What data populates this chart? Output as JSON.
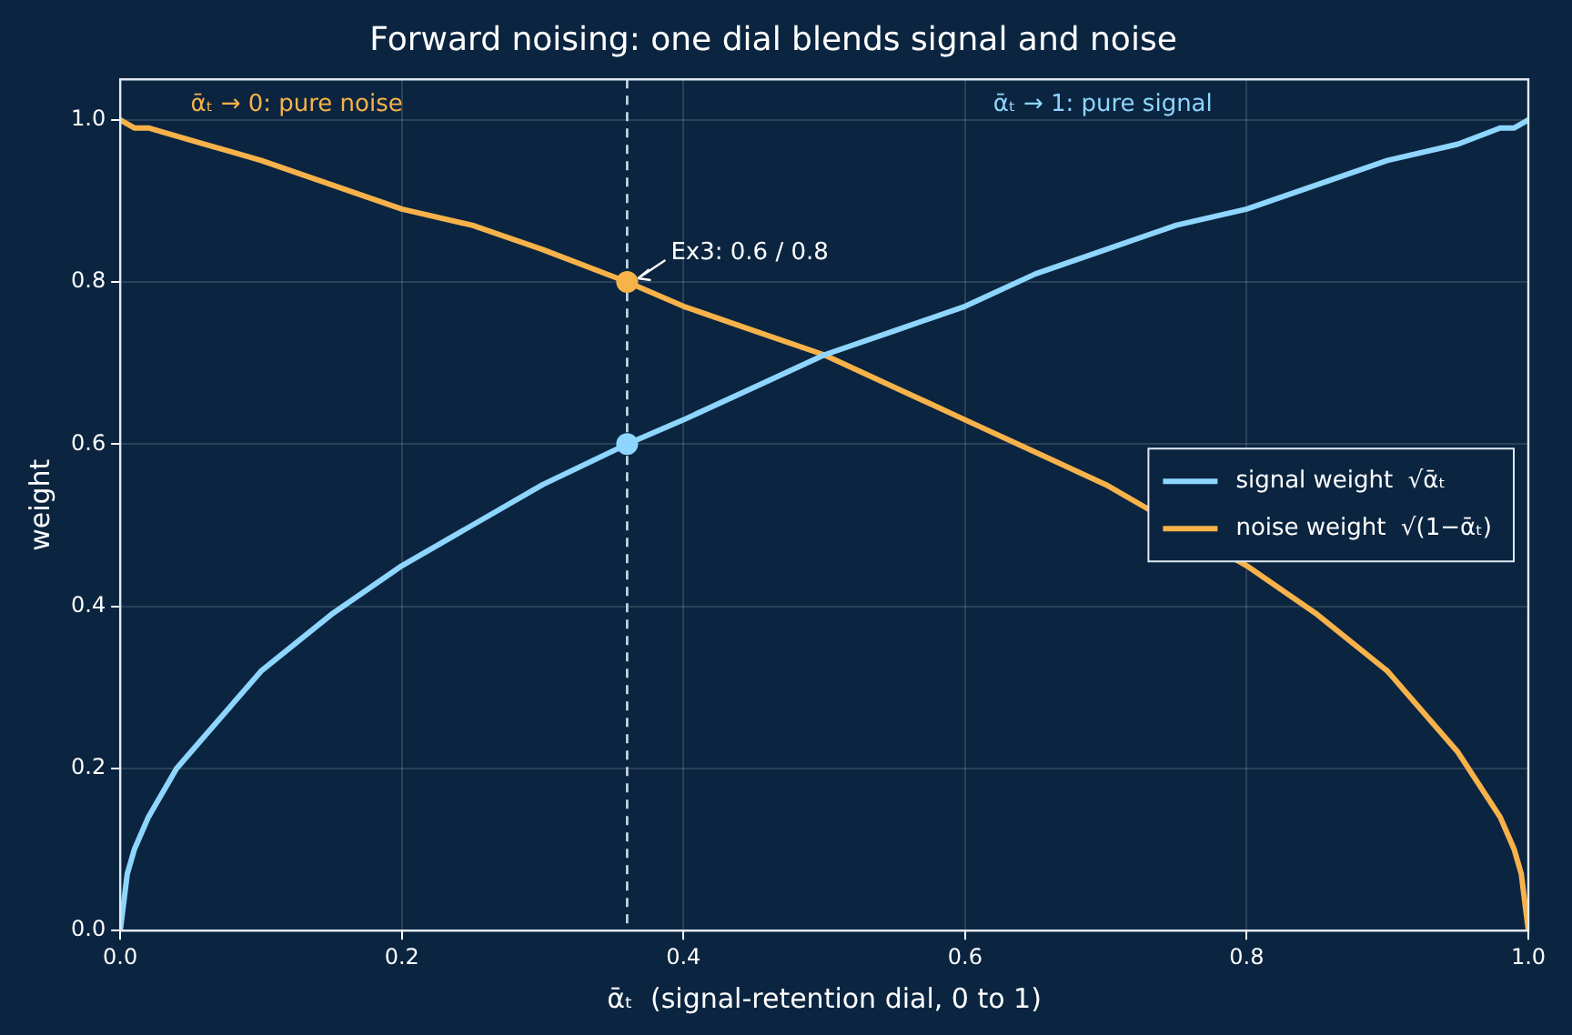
{
  "chart_data": {
    "type": "line",
    "title": "Forward noising: one dial blends signal and noise",
    "xlabel": "ᾱₜ  (signal-retention dial, 0 to 1)",
    "ylabel": "weight",
    "xlim": [
      0,
      1
    ],
    "xticks": [
      {
        "value": 0,
        "label": "0.0"
      },
      0.2,
      0.4,
      0.6,
      0.8,
      {
        "value": 1,
        "label": "1.0"
      }
    ],
    "ylim": [
      0,
      1.05
    ],
    "yticks": [
      {
        "value": 0,
        "label": "0.0"
      },
      0.2,
      0.4,
      0.6,
      0.8,
      {
        "value": 1,
        "label": "1.0"
      }
    ],
    "grid": true,
    "legend": "right",
    "line_style": "solid",
    "series": [
      {
        "name": "signal weight  √ᾱₜ",
        "color": "#8ed6ff",
        "x": [
          0,
          0.005,
          0.01,
          0.02,
          0.04,
          0.06,
          0.08,
          0.1,
          0.15,
          0.2,
          0.25,
          0.3,
          0.36,
          0.4,
          0.45,
          0.5,
          0.55,
          0.6,
          0.65,
          0.7,
          0.75,
          0.8,
          0.85,
          0.9,
          0.95,
          0.98,
          0.99,
          1
        ],
        "values": [
          0,
          0.07,
          0.1,
          0.14,
          0.2,
          0.24,
          0.28,
          0.32,
          0.39,
          0.45,
          0.5,
          0.55,
          0.6,
          0.63,
          0.67,
          0.71,
          0.74,
          0.77,
          0.81,
          0.84,
          0.87,
          0.89,
          0.92,
          0.95,
          0.97,
          0.99,
          0.99,
          1
        ]
      },
      {
        "name": "noise weight  √(1−ᾱₜ)",
        "color": "#f7b24a",
        "x": [
          0,
          0.01,
          0.02,
          0.04,
          0.06,
          0.08,
          0.1,
          0.15,
          0.2,
          0.25,
          0.3,
          0.36,
          0.4,
          0.45,
          0.5,
          0.55,
          0.6,
          0.65,
          0.7,
          0.75,
          0.8,
          0.85,
          0.9,
          0.95,
          0.98,
          0.99,
          0.995,
          1
        ],
        "values": [
          1,
          0.99,
          0.99,
          0.98,
          0.97,
          0.96,
          0.95,
          0.92,
          0.89,
          0.87,
          0.84,
          0.8,
          0.77,
          0.74,
          0.71,
          0.67,
          0.63,
          0.59,
          0.55,
          0.5,
          0.45,
          0.39,
          0.32,
          0.22,
          0.14,
          0.1,
          0.07,
          0
        ]
      },
      {
        "type": "scatter",
        "color": "#8ed6ff",
        "x": [
          0.36
        ],
        "values": [
          0.6
        ],
        "marker": "circle"
      },
      {
        "type": "scatter",
        "color": "#f7b24a",
        "x": [
          0.36
        ],
        "values": [
          0.8
        ],
        "marker": "circle"
      }
    ],
    "ref_lines": [
      {
        "axis": "x",
        "value": 0.36,
        "color": "#c9dcea",
        "line_style": "dashed"
      }
    ],
    "annotations": [
      {
        "text": "Ex3: 0.6 / 0.8",
        "x": 0.36,
        "y": 0.8
      },
      "ᾱₜ → 0: pure noise",
      "ᾱₜ → 1: pure signal"
    ]
  }
}
